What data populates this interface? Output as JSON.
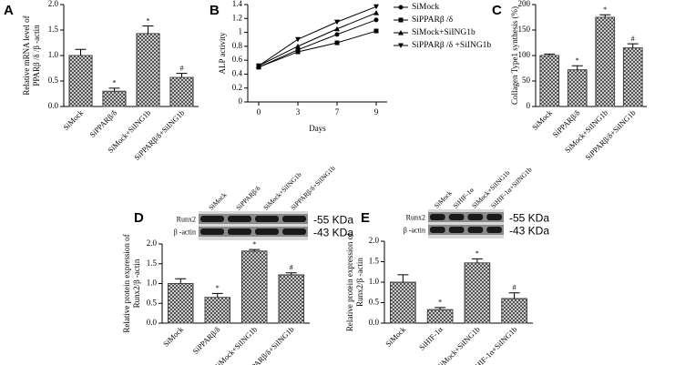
{
  "chart_data": [
    {
      "type": "bar",
      "panel": "A",
      "ylabel": [
        "Relative mRNA level of",
        "PPARβ /δ /β -actin"
      ],
      "categories": [
        "SiMock",
        "SiPPARβ/δ",
        "SiMock+SiING1b",
        "SiPPARβ/δ+SiING1b"
      ],
      "values": [
        1.0,
        0.3,
        1.43,
        0.57
      ],
      "errors": [
        0.12,
        0.06,
        0.15,
        0.08
      ],
      "marks": [
        null,
        "*",
        "*",
        "#"
      ],
      "ylim": [
        0,
        2
      ],
      "yticks": [
        {
          "value": 0,
          "label": "0.0"
        },
        0.5,
        {
          "value": 1,
          "label": "1.0"
        },
        1.5,
        {
          "value": 2,
          "label": "2.0"
        }
      ],
      "color": "#444444"
    },
    {
      "type": "line",
      "panel": "B",
      "xlabel": "Days",
      "ylabel": "ALP activity",
      "categories": [
        "0",
        "3",
        "7",
        "9"
      ],
      "series": [
        {
          "name": "SiMock",
          "marker": "circle",
          "color": "#000000",
          "values": [
            0.5,
            0.75,
            0.97,
            1.18
          ]
        },
        {
          "name": "SiPPARβ /δ",
          "marker": "square",
          "color": "#000000",
          "values": [
            0.5,
            0.72,
            0.85,
            1.02
          ]
        },
        {
          "name": "SiMock+SiING1b",
          "marker": "triangle-up",
          "color": "#000000",
          "values": [
            0.52,
            0.8,
            1.05,
            1.28
          ]
        },
        {
          "name": "SiPPARβ /δ +SiING1b",
          "marker": "triangle-down",
          "color": "#000000",
          "values": [
            0.52,
            0.9,
            1.15,
            1.37
          ]
        }
      ],
      "ylim": [
        0,
        1.4
      ],
      "yticks": [
        0,
        0.2,
        0.4,
        0.6,
        0.8,
        1,
        1.2,
        1.4
      ],
      "legend": "top-right"
    },
    {
      "type": "bar",
      "panel": "C",
      "ylabel": [
        "Collagen Type1 synthesis (%)"
      ],
      "categories": [
        "SiMock",
        "SiPPARβ/δ",
        "SiMock+SiING1b",
        "SiPPARβ/δ+SiING1b"
      ],
      "values": [
        100,
        72,
        175,
        115
      ],
      "errors": [
        3,
        8,
        5,
        8
      ],
      "marks": [
        null,
        "*",
        "*",
        "#"
      ],
      "ylim": [
        0,
        200
      ],
      "yticks": [
        0,
        50,
        100,
        150,
        200
      ],
      "color": "#444444"
    },
    {
      "type": "bar",
      "panel": "D",
      "ylabel": [
        "Relative protein expression of",
        "Runx2/β -actin"
      ],
      "categories": [
        "SiMock",
        "SiPPARβ/δ",
        "SiMock+SiING1b",
        "SiPPARβ/δ+SiING1b"
      ],
      "values": [
        1.0,
        0.65,
        1.82,
        1.22
      ],
      "errors": [
        0.12,
        0.1,
        0.04,
        0.05
      ],
      "marks": [
        null,
        "*",
        "*",
        "#"
      ],
      "blot_rows": [
        "Runx2",
        "β -actin"
      ],
      "blot_sizes": [
        "-55 KDa",
        "-43 KDa"
      ],
      "ylim": [
        0,
        2
      ],
      "yticks": [
        {
          "value": 0,
          "label": "0.0"
        },
        0.5,
        {
          "value": 1,
          "label": "1.0"
        },
        1.5,
        {
          "value": 2,
          "label": "2.0"
        }
      ],
      "color": "#444444"
    },
    {
      "type": "bar",
      "panel": "E",
      "ylabel": [
        "Relative protein expression of",
        "Runx2/β -actin"
      ],
      "categories": [
        "SiMock",
        "SiHIF-1α",
        "SiMock+SiING1b",
        "SiHIF-1α+SiING1b"
      ],
      "values": [
        1.0,
        0.33,
        1.47,
        0.6
      ],
      "errors": [
        0.18,
        0.05,
        0.1,
        0.14
      ],
      "marks": [
        null,
        "*",
        "*",
        "#"
      ],
      "blot_rows": [
        "Runx2",
        "β -actin"
      ],
      "blot_sizes": [
        "-55 KDa",
        "-43 KDa"
      ],
      "ylim": [
        0,
        2
      ],
      "yticks": [
        {
          "value": 0,
          "label": "0.0"
        },
        0.5,
        {
          "value": 1,
          "label": "1.0"
        },
        1.5,
        {
          "value": 2,
          "label": "2.0"
        }
      ],
      "color": "#444444"
    }
  ]
}
